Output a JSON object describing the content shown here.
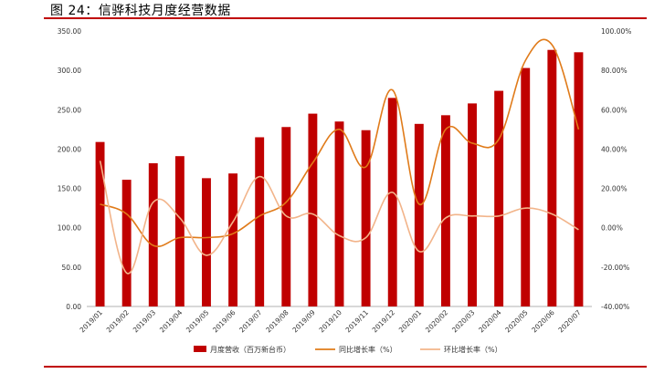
{
  "page": {
    "title": "图 24：信骅科技月度经营数据"
  },
  "chart_data": {
    "type": "bar",
    "title": "",
    "categories": [
      "2019/01",
      "2019/02",
      "2019/03",
      "2019/04",
      "2019/05",
      "2019/06",
      "2019/07",
      "2019/08",
      "2019/09",
      "2019/10",
      "2019/11",
      "2019/12",
      "2020/01",
      "2020/02",
      "2020/03",
      "2020/04",
      "2020/05",
      "2020/06",
      "2020/07"
    ],
    "series": [
      {
        "name": "月度营收（百万新台币）",
        "type": "bar",
        "axis": "left",
        "color": "#c00000",
        "values": [
          209,
          161,
          182,
          191,
          163,
          169,
          215,
          228,
          245,
          235,
          224,
          265,
          232,
          243,
          258,
          274,
          303,
          326,
          323
        ]
      },
      {
        "name": "同比增长率（%）",
        "type": "line",
        "axis": "right",
        "color": "#e07b1a",
        "values": [
          12,
          7,
          -9,
          -5,
          -5,
          -3,
          6,
          13,
          33,
          50,
          31,
          70,
          12,
          50,
          43,
          45,
          85,
          93,
          50
        ]
      },
      {
        "name": "环比增长率（%）",
        "type": "line",
        "axis": "right",
        "color": "#f2b48a",
        "values": [
          34,
          -23,
          13,
          5,
          -14,
          3,
          26,
          6,
          7,
          -4,
          -5,
          18,
          -12,
          5,
          6,
          6,
          10,
          7,
          -1
        ]
      }
    ],
    "left_axis": {
      "ylim": [
        0,
        350
      ],
      "ticks": [
        "0.00",
        "50.00",
        "100.00",
        "150.00",
        "200.00",
        "250.00",
        "300.00",
        "350.00"
      ]
    },
    "right_axis": {
      "ylim": [
        -40,
        100
      ],
      "ticks": [
        "-40.00%",
        "-20.00%",
        "0.00%",
        "20.00%",
        "40.00%",
        "60.00%",
        "80.00%",
        "100.00%"
      ]
    },
    "grid": false,
    "legend": "bottom"
  }
}
